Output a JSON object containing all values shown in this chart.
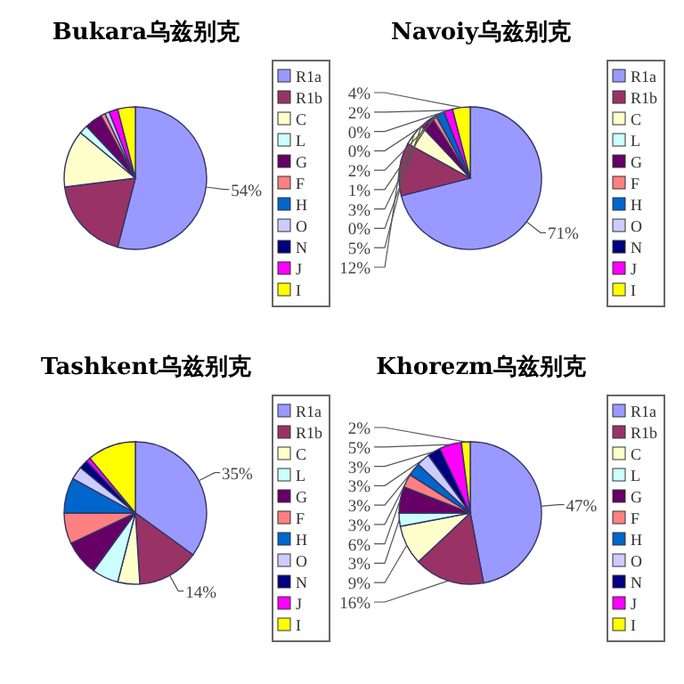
{
  "chart_data": [
    {
      "type": "pie",
      "title": "Bukara乌兹别克",
      "categories": [
        "R1a",
        "R1b",
        "C",
        "L",
        "G",
        "F",
        "H",
        "O",
        "N",
        "J",
        "I"
      ],
      "values": [
        54,
        19,
        13,
        2,
        4,
        1,
        0,
        1,
        0,
        2,
        4
      ],
      "value_labels": [
        "54%",
        null,
        null,
        null,
        null,
        null,
        null,
        null,
        null,
        null,
        null
      ],
      "colors": [
        "#9999ff",
        "#993366",
        "#ffffcc",
        "#ccffff",
        "#660066",
        "#ff8080",
        "#0066cc",
        "#ccccff",
        "#000080",
        "#ff00ff",
        "#ffff00"
      ],
      "legend": "right"
    },
    {
      "type": "pie",
      "title": "Navoiy乌兹别克",
      "categories": [
        "R1a",
        "R1b",
        "C",
        "L",
        "G",
        "F",
        "H",
        "O",
        "N",
        "J",
        "I"
      ],
      "values": [
        71,
        12,
        5,
        0,
        3,
        1,
        2,
        0,
        0,
        2,
        4
      ],
      "value_labels": [
        "71%",
        "12%",
        "5%",
        "0%",
        "3%",
        "1%",
        "2%",
        "0%",
        "0%",
        "2%",
        "4%"
      ],
      "colors": [
        "#9999ff",
        "#993366",
        "#ffffcc",
        "#ccffff",
        "#660066",
        "#ff8080",
        "#0066cc",
        "#ccccff",
        "#000080",
        "#ff00ff",
        "#ffff00"
      ],
      "legend": "right"
    },
    {
      "type": "pie",
      "title": "Tashkent乌兹别克",
      "categories": [
        "R1a",
        "R1b",
        "C",
        "L",
        "G",
        "F",
        "H",
        "O",
        "N",
        "J",
        "I"
      ],
      "values": [
        35,
        14,
        5,
        6,
        8,
        7,
        8,
        3,
        2,
        1,
        11
      ],
      "value_labels": [
        "35%",
        "14%",
        null,
        null,
        null,
        null,
        null,
        null,
        null,
        null,
        null
      ],
      "colors": [
        "#9999ff",
        "#993366",
        "#ffffcc",
        "#ccffff",
        "#660066",
        "#ff8080",
        "#0066cc",
        "#ccccff",
        "#000080",
        "#ff00ff",
        "#ffff00"
      ],
      "legend": "right"
    },
    {
      "type": "pie",
      "title": "Khorezm乌兹别克",
      "categories": [
        "R1a",
        "R1b",
        "C",
        "L",
        "G",
        "F",
        "H",
        "O",
        "N",
        "J",
        "I"
      ],
      "values": [
        47,
        16,
        9,
        3,
        6,
        3,
        3,
        3,
        3,
        5,
        2
      ],
      "value_labels": [
        "47%",
        "16%",
        "9%",
        "3%",
        "6%",
        "3%",
        "3%",
        "3%",
        "3%",
        "5%",
        "2%"
      ],
      "colors": [
        "#9999ff",
        "#993366",
        "#ffffcc",
        "#ccffff",
        "#660066",
        "#ff8080",
        "#0066cc",
        "#ccccff",
        "#000080",
        "#ff00ff",
        "#ffff00"
      ],
      "legend": "right"
    }
  ]
}
